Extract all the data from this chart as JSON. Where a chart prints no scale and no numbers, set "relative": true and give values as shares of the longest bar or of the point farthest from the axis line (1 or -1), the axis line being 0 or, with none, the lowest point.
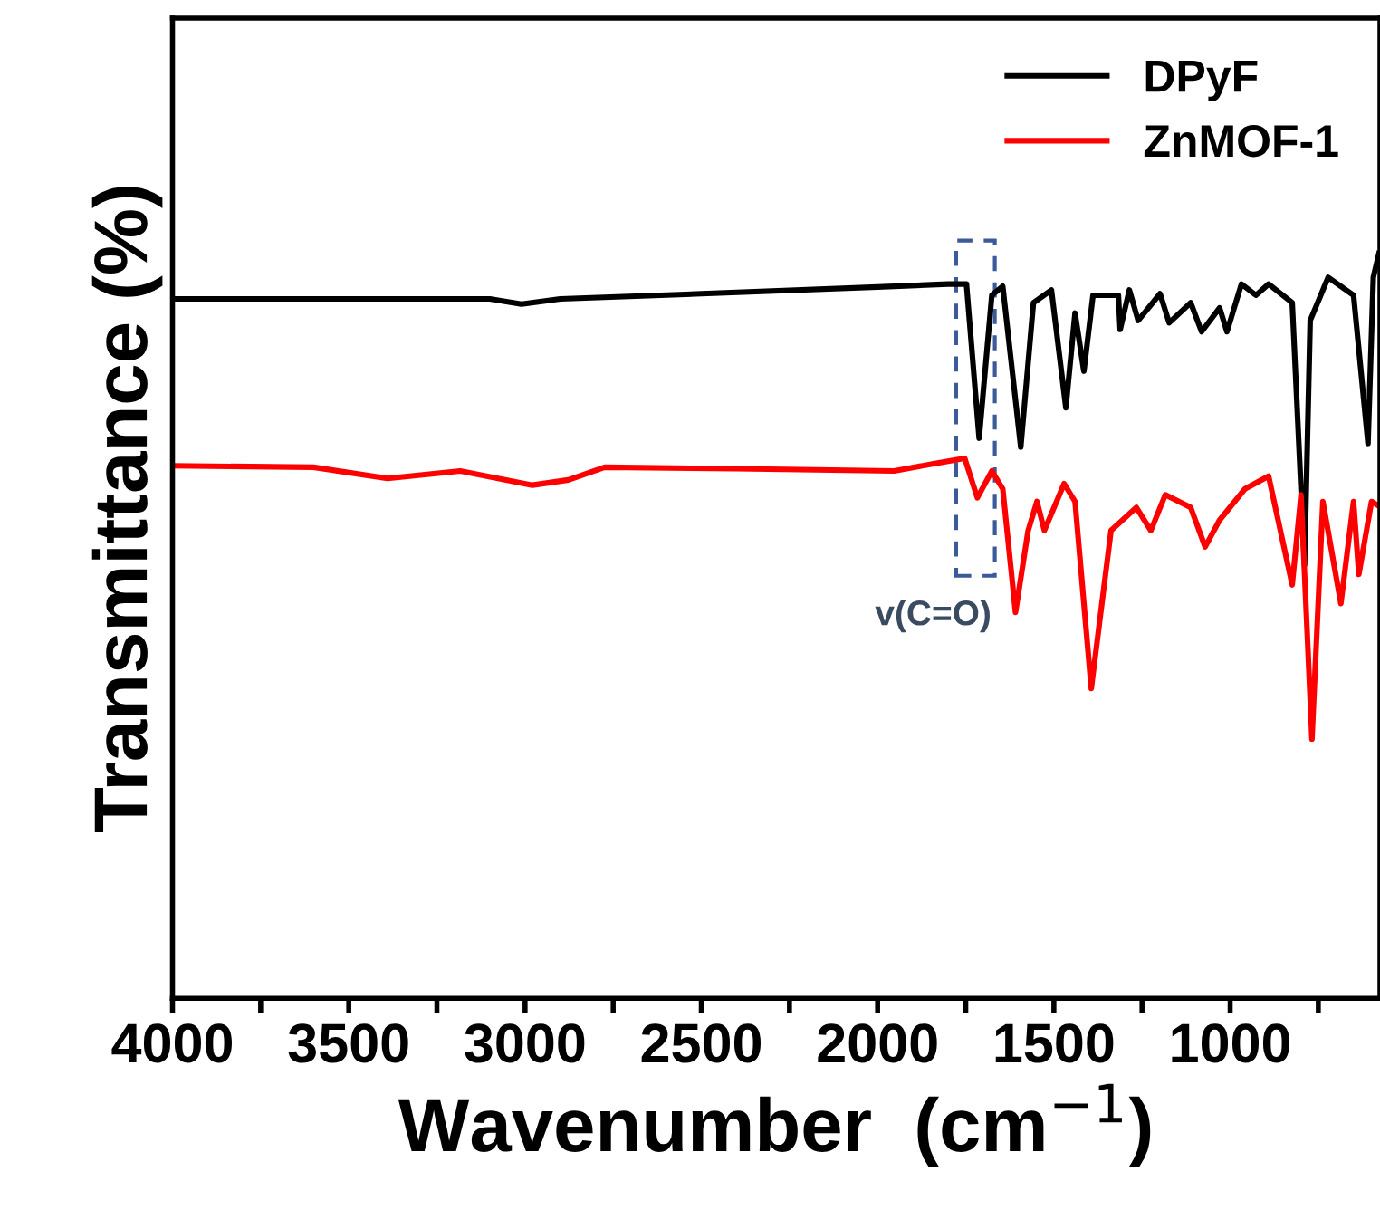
{
  "chart_data": {
    "type": "line",
    "relative": true,
    "tick_labels": "x",
    "xlabel": "Wavenumber  (cm$^{−1}$)",
    "ylabel": "Transmittance (%)",
    "xlim": [
      4000,
      575
    ],
    "xticks": [
      4000,
      {
        "value": 3750,
        "label": null
      },
      3500,
      {
        "value": 3250,
        "label": null
      },
      3000,
      {
        "value": 2750,
        "label": null
      },
      2500,
      {
        "value": 2250,
        "label": null
      },
      2000,
      {
        "value": 1750,
        "label": null
      },
      1500,
      {
        "value": 1250,
        "label": null
      },
      1000,
      {
        "value": 750,
        "label": null
      }
    ],
    "legend": "top right",
    "grid": false,
    "annotations": [
      "v(C=O)"
    ],
    "series": [
      {
        "name": "DPyF",
        "color": "#000000",
        "x": [
          4000,
          3500,
          3100,
          3010,
          2900,
          2500,
          2000,
          1800,
          1748,
          1712,
          1676,
          1645,
          1594,
          1558,
          1507,
          1466,
          1440,
          1415,
          1389,
          1317,
          1312,
          1286,
          1261,
          1199,
          1173,
          1112,
          1081,
          1030,
          1009,
          968,
          927,
          891,
          824,
          789,
          773,
          722,
          650,
          609,
          594,
          578
        ],
        "values": [
          0.939,
          0.939,
          0.939,
          0.932,
          0.939,
          0.946,
          0.955,
          0.959,
          0.959,
          0.752,
          0.944,
          0.956,
          0.74,
          0.934,
          0.951,
          0.793,
          0.92,
          0.842,
          0.944,
          0.944,
          0.898,
          0.951,
          0.91,
          0.946,
          0.907,
          0.934,
          0.895,
          0.927,
          0.895,
          0.959,
          0.944,
          0.959,
          0.934,
          0.582,
          0.91,
          0.968,
          0.944,
          0.745,
          0.968,
          1.0
        ]
      },
      {
        "name": "ZnMOF-1",
        "color": "#ff0000",
        "x": [
          4000,
          3600,
          3390,
          3184,
          2979,
          2877,
          2774,
          2400,
          1953,
          1815,
          1753,
          1717,
          1676,
          1645,
          1609,
          1573,
          1548,
          1527,
          1471,
          1440,
          1394,
          1338,
          1266,
          1225,
          1184,
          1112,
          1071,
          1030,
          958,
          891,
          824,
          799,
          768,
          737,
          686,
          650,
          635,
          599,
          575
        ],
        "values": [
          0.715,
          0.713,
          0.698,
          0.708,
          0.689,
          0.696,
          0.713,
          0.711,
          0.708,
          0.72,
          0.725,
          0.672,
          0.708,
          0.684,
          0.518,
          0.628,
          0.667,
          0.628,
          0.691,
          0.667,
          0.416,
          0.628,
          0.659,
          0.628,
          0.676,
          0.659,
          0.606,
          0.642,
          0.684,
          0.701,
          0.555,
          0.676,
          0.348,
          0.667,
          0.53,
          0.667,
          0.569,
          0.667,
          0.66
        ]
      }
    ]
  }
}
